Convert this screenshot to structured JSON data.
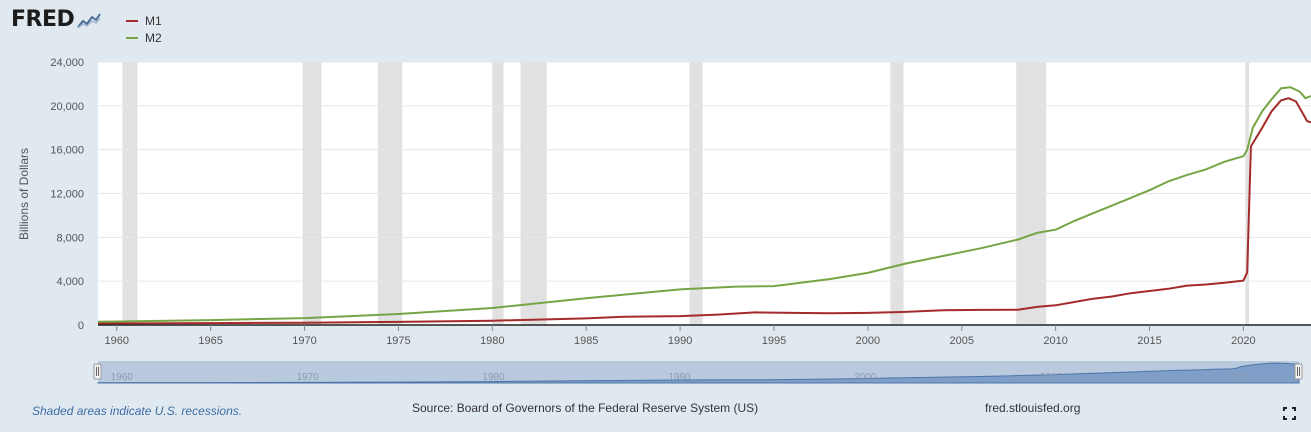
{
  "logo": {
    "text": "FRED"
  },
  "footer": {
    "note": "Shaded areas indicate U.S. recessions.",
    "source": "Source: Board of Governors of the Federal Reserve System (US)",
    "url": "fred.stlouisfed.org"
  },
  "icons": {
    "logo_mark": "line-chart-icon",
    "fullscreen": "fullscreen-icon"
  },
  "chart_data": {
    "type": "line",
    "title": "",
    "xlabel": "",
    "ylabel": "Billions of Dollars",
    "xlim": [
      1959.0,
      2023.6
    ],
    "ylim": [
      0,
      24000
    ],
    "grid": true,
    "legend": "top-left",
    "x_ticks": [
      1960,
      1965,
      1970,
      1975,
      1980,
      1985,
      1990,
      1995,
      2000,
      2005,
      2010,
      2015,
      2020
    ],
    "y_ticks": [
      0,
      4000,
      8000,
      12000,
      16000,
      20000,
      24000
    ],
    "y_tick_labels": [
      "0",
      "4,000",
      "8,000",
      "12,000",
      "16,000",
      "20,000",
      "24,000"
    ],
    "navigator_labels": [
      "1960",
      "1970",
      "1980",
      "1990",
      "2000",
      "2010",
      "2020"
    ],
    "recessions": [
      [
        1960.3,
        1961.1
      ],
      [
        1969.9,
        1970.9
      ],
      [
        1973.9,
        1975.2
      ],
      [
        1980.0,
        1980.6
      ],
      [
        1981.5,
        1982.9
      ],
      [
        1990.5,
        1991.2
      ],
      [
        2001.2,
        2001.9
      ],
      [
        2007.9,
        2009.5
      ],
      [
        2020.1,
        2020.3
      ]
    ],
    "series": [
      {
        "name": "M1",
        "color": "#a52a2a",
        "points": [
          [
            1959.0,
            140
          ],
          [
            1965,
            170
          ],
          [
            1970,
            210
          ],
          [
            1975,
            280
          ],
          [
            1980,
            390
          ],
          [
            1985,
            600
          ],
          [
            1987,
            750
          ],
          [
            1990,
            810
          ],
          [
            1992,
            950
          ],
          [
            1994,
            1150
          ],
          [
            1996,
            1100
          ],
          [
            1998,
            1080
          ],
          [
            2000,
            1100
          ],
          [
            2002,
            1200
          ],
          [
            2004,
            1350
          ],
          [
            2006,
            1380
          ],
          [
            2008,
            1400
          ],
          [
            2009,
            1650
          ],
          [
            2010,
            1800
          ],
          [
            2011,
            2100
          ],
          [
            2012,
            2400
          ],
          [
            2013,
            2600
          ],
          [
            2014,
            2900
          ],
          [
            2015,
            3100
          ],
          [
            2016,
            3300
          ],
          [
            2017,
            3600
          ],
          [
            2018,
            3700
          ],
          [
            2019,
            3850
          ],
          [
            2020.0,
            4050
          ],
          [
            2020.2,
            4800
          ],
          [
            2020.4,
            16300
          ],
          [
            2021.0,
            18000
          ],
          [
            2021.5,
            19500
          ],
          [
            2022.0,
            20500
          ],
          [
            2022.4,
            20700
          ],
          [
            2022.8,
            20400
          ],
          [
            2023.2,
            19200
          ],
          [
            2023.4,
            18600
          ],
          [
            2023.6,
            18500
          ]
        ]
      },
      {
        "name": "M2",
        "color": "#77a545",
        "points": [
          [
            1959.0,
            290
          ],
          [
            1965,
            450
          ],
          [
            1970,
            630
          ],
          [
            1975,
            1000
          ],
          [
            1980,
            1550
          ],
          [
            1985,
            2450
          ],
          [
            1990,
            3250
          ],
          [
            1993,
            3500
          ],
          [
            1995,
            3550
          ],
          [
            1998,
            4200
          ],
          [
            2000,
            4750
          ],
          [
            2002,
            5600
          ],
          [
            2004,
            6300
          ],
          [
            2006,
            7000
          ],
          [
            2008,
            7800
          ],
          [
            2009,
            8400
          ],
          [
            2010,
            8700
          ],
          [
            2011,
            9500
          ],
          [
            2012,
            10200
          ],
          [
            2013,
            10900
          ],
          [
            2014,
            11600
          ],
          [
            2015,
            12300
          ],
          [
            2016,
            13100
          ],
          [
            2017,
            13700
          ],
          [
            2018,
            14200
          ],
          [
            2019,
            14900
          ],
          [
            2020.0,
            15400
          ],
          [
            2020.2,
            16000
          ],
          [
            2020.5,
            18000
          ],
          [
            2021.0,
            19500
          ],
          [
            2021.5,
            20600
          ],
          [
            2022.0,
            21600
          ],
          [
            2022.5,
            21700
          ],
          [
            2023.0,
            21300
          ],
          [
            2023.3,
            20700
          ],
          [
            2023.6,
            20900
          ]
        ]
      }
    ]
  }
}
